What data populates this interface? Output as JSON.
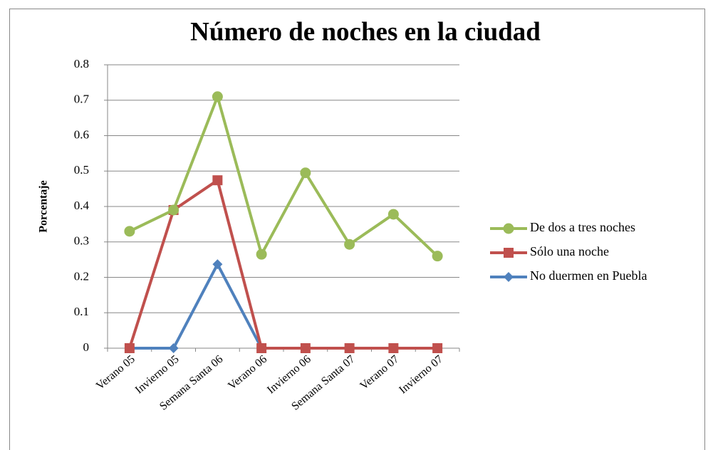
{
  "chart_data": {
    "type": "line",
    "title": "Número de noches en la ciudad",
    "y_label": "Porcentaje",
    "categories": [
      "Verano 05",
      "Invierno 05",
      "Semana Santa 06",
      "Verano 06",
      "Invierno 06",
      "Semana Santa 07",
      "Verano 07",
      "Invierno 07"
    ],
    "series": [
      {
        "name": "De dos a tres noches",
        "color": "#9bbb59",
        "marker": "circle",
        "values": [
          0.33,
          0.39,
          0.71,
          0.265,
          0.495,
          0.293,
          0.378,
          0.26
        ]
      },
      {
        "name": "Sólo una noche",
        "color": "#c0504d",
        "marker": "square",
        "values": [
          0,
          0.39,
          0.474,
          0,
          0,
          0,
          0,
          0
        ]
      },
      {
        "name": "No duermen en Puebla",
        "color": "#4f81bd",
        "marker": "diamond",
        "values": [
          0,
          0,
          0.237,
          0,
          0,
          0,
          0,
          0
        ]
      }
    ],
    "ylim": [
      0,
      0.8
    ],
    "yticks": [
      0,
      0.1,
      0.2,
      0.3,
      0.4,
      0.5,
      0.6,
      0.7,
      0.8
    ],
    "grid": true,
    "legend": "right"
  }
}
